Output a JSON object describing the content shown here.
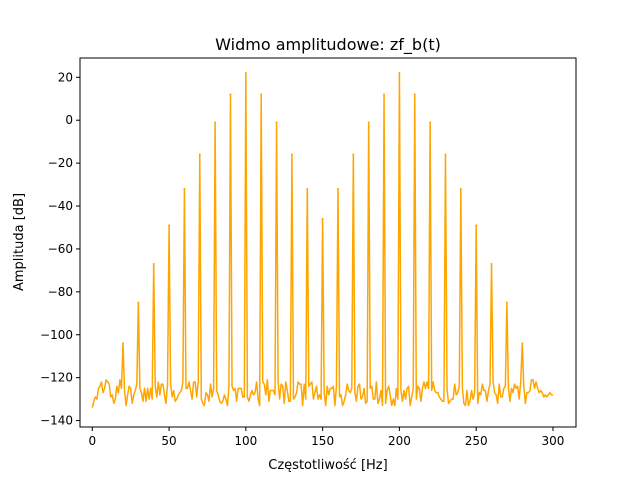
{
  "chart_data": {
    "type": "line",
    "title": "Widmo amplitudowe: zf_b(t)",
    "xlabel": "Częstotliwość [Hz]",
    "ylabel": "Amplituda [dB]",
    "xlim": [
      -8,
      315
    ],
    "ylim": [
      -143,
      29
    ],
    "xticks": [
      0,
      50,
      100,
      150,
      200,
      250,
      300
    ],
    "xtick_labels": [
      "0",
      "50",
      "100",
      "150",
      "200",
      "250",
      "300"
    ],
    "yticks": [
      20,
      0,
      -20,
      -40,
      -60,
      -80,
      -100,
      -120,
      -140
    ],
    "ytick_labels": [
      "20",
      "0",
      "−20",
      "−40",
      "−60",
      "−80",
      "−100",
      "−120",
      "−140"
    ],
    "grid": false,
    "series": [
      {
        "color": "#ffa500",
        "peaks": {
          "x": [
            20,
            30,
            40,
            50,
            60,
            70,
            80,
            90,
            100,
            110,
            120,
            130,
            140,
            150,
            160,
            170,
            180,
            190,
            200,
            210,
            220,
            230,
            240,
            250,
            260,
            270,
            280
          ],
          "y": [
            -104,
            -85,
            -67,
            -49,
            -32,
            -16,
            -1,
            12,
            22,
            12,
            -1,
            -16,
            -32,
            -46,
            -32,
            -16,
            -1,
            12,
            22,
            12,
            -1,
            -16,
            -32,
            -49,
            -67,
            -85,
            -104
          ]
        },
        "floor": {
          "x_start": 0,
          "x_end": 300,
          "step": 1,
          "values": [
            -134,
            -131,
            -129,
            -130,
            -125,
            -124,
            -122,
            -127,
            -125,
            -121,
            -122,
            -123,
            -129,
            -128,
            -132,
            -130,
            -124,
            -127,
            -121,
            -125,
            -104,
            -126,
            -133,
            -128,
            -124,
            -125,
            -132,
            -128,
            -126,
            -123,
            -85,
            -125,
            -127,
            -131,
            -125,
            -131,
            -125,
            -130,
            -125,
            -130,
            -67,
            -124,
            -129,
            -122,
            -128,
            -123,
            -123,
            -128,
            -132,
            -123,
            -49,
            -123,
            -129,
            -126,
            -131,
            -130,
            -128,
            -127,
            -126,
            -122,
            -32,
            -125,
            -125,
            -122,
            -126,
            -130,
            -122,
            -122,
            -129,
            -122,
            -16,
            -130,
            -132,
            -133,
            -127,
            -128,
            -131,
            -123,
            -129,
            -125,
            -1,
            -126,
            -128,
            -131,
            -132,
            -131,
            -128,
            -130,
            -133,
            -124,
            12,
            -124,
            -126,
            -125,
            -131,
            -125,
            -125,
            -125,
            -129,
            -129,
            22,
            -129,
            -131,
            -128,
            -126,
            -128,
            -127,
            -122,
            -130,
            -133,
            12,
            -122,
            -123,
            -128,
            -121,
            -131,
            -126,
            -126,
            -126,
            -128,
            -1,
            -122,
            -130,
            -123,
            -124,
            -132,
            -122,
            -126,
            -131,
            -131,
            -16,
            -130,
            -129,
            -127,
            -122,
            -123,
            -123,
            -133,
            -123,
            -130,
            -32,
            -124,
            -123,
            -122,
            -130,
            -127,
            -124,
            -130,
            -128,
            -130,
            -46,
            -127,
            -133,
            -124,
            -128,
            -125,
            -125,
            -124,
            -133,
            -124,
            -32,
            -129,
            -128,
            -133,
            -131,
            -128,
            -123,
            -126,
            -127,
            -125,
            -16,
            -127,
            -131,
            -124,
            -123,
            -130,
            -129,
            -125,
            -132,
            -131,
            -1,
            -125,
            -124,
            -130,
            -130,
            -122,
            -132,
            -130,
            -126,
            -133,
            12,
            -132,
            -126,
            -124,
            -128,
            -133,
            -130,
            -133,
            -125,
            -130,
            22,
            -126,
            -131,
            -126,
            -130,
            -125,
            -124,
            -133,
            -129,
            -125,
            12,
            -130,
            -124,
            -125,
            -131,
            -125,
            -122,
            -125,
            -122,
            -125,
            -1,
            -126,
            -122,
            -126,
            -127,
            -127,
            -129,
            -130,
            -131,
            -131,
            -16,
            -125,
            -132,
            -131,
            -130,
            -130,
            -123,
            -128,
            -127,
            -124,
            -32,
            -125,
            -132,
            -133,
            -126,
            -133,
            -131,
            -126,
            -130,
            -127,
            -49,
            -132,
            -127,
            -128,
            -123,
            -126,
            -126,
            -131,
            -126,
            -123,
            -67,
            -122,
            -127,
            -128,
            -132,
            -123,
            -129,
            -129,
            -125,
            -124,
            -85,
            -125,
            -131,
            -125,
            -127,
            -123,
            -125,
            -124,
            -130,
            -122,
            -104,
            -124,
            -132,
            -127,
            -127,
            -126,
            -121,
            -121,
            -125,
            -122,
            -125,
            -127,
            -126,
            -127,
            -129,
            -128,
            -129,
            -128,
            -127,
            -128,
            -128
          ]
        }
      }
    ]
  }
}
